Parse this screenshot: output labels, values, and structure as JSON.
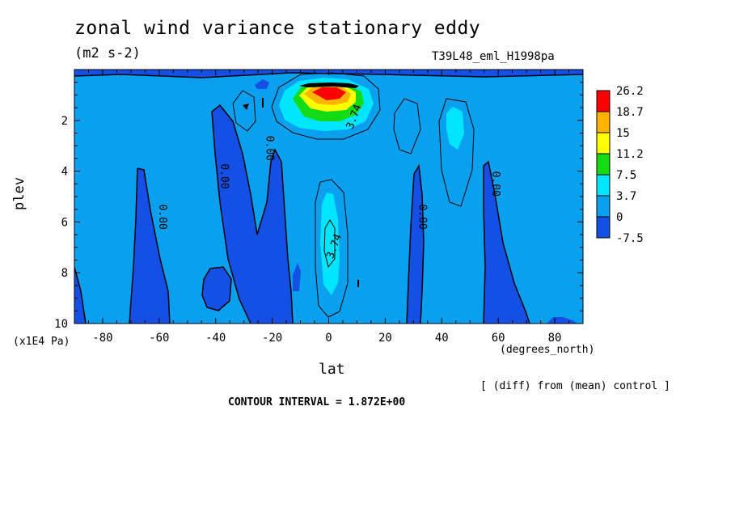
{
  "title": "zonal wind variance stationary eddy",
  "units": "(m2 s-2)",
  "run_label": "T39L48_eml_H1998pa",
  "diff_label": "[ (diff) from (mean) control ]",
  "contour_interval": "CONTOUR INTERVAL = 1.872E+00",
  "colors": {
    "below_neg": "#1450e6",
    "band_0": "#0aa0f0",
    "band_3_7": "#00e6ff",
    "band_7_5": "#14dc14",
    "band_11_2": "#ffff00",
    "band_15": "#ffb400",
    "band_18_7": "#ff0000"
  },
  "chart_data": {
    "type": "heatmap",
    "title": "zonal wind variance stationary eddy",
    "xlabel": "lat",
    "ylabel": "plev",
    "x_units": "(degrees_north)",
    "y_units": "(x1E4 Pa)",
    "xlim": [
      -90,
      90
    ],
    "ylim": [
      10,
      0
    ],
    "x_ticks": [
      -80,
      -60,
      -40,
      -20,
      0,
      20,
      40,
      60,
      80
    ],
    "x_tick_labels": [
      "-80",
      "-60",
      "-40",
      "-20",
      "0",
      "20",
      "40",
      "60",
      "80"
    ],
    "y_ticks": [
      2,
      4,
      6,
      8,
      10
    ],
    "y_tick_labels": [
      "2",
      "4",
      "6",
      "8",
      "10"
    ],
    "colorbar_labels": [
      "26.2",
      "18.7",
      "15",
      "11.2",
      "7.5",
      "3.7",
      "0",
      "-7.5"
    ],
    "contour_labels": [
      {
        "text": "3.74",
        "lat": 10,
        "plev": 1.9
      },
      {
        "text": "3.74",
        "lat": 3,
        "plev": 7.0
      },
      {
        "text": "0.00",
        "lat": -22,
        "plev": 3.1
      },
      {
        "text": "0.00",
        "lat": -38,
        "plev": 4.2
      },
      {
        "text": "0.00",
        "lat": -60,
        "plev": 5.8
      },
      {
        "text": "0.00",
        "lat": 32,
        "plev": 5.8
      },
      {
        "text": "0.00",
        "lat": 58,
        "plev": 4.5
      }
    ],
    "grid": false,
    "legend": "right"
  }
}
